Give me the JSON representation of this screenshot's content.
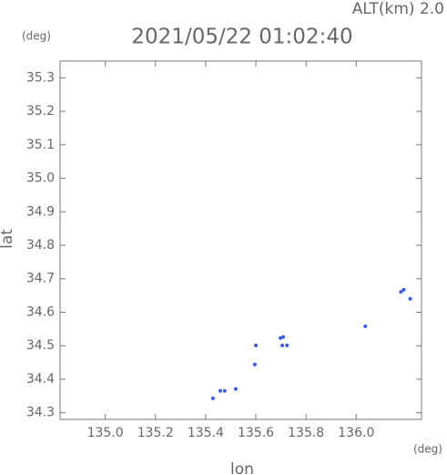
{
  "chart_data": {
    "type": "scatter",
    "title": "2021/05/22 01:02:40",
    "subtitle": "ALT(km) 2.0",
    "x_label": "lon",
    "y_label": "lat",
    "x_unit": "(deg)",
    "y_unit": "(deg)",
    "color": "#3a5ce0",
    "x": [
      135.429,
      135.458,
      135.476,
      135.52,
      135.6,
      135.596,
      135.698,
      135.709,
      135.705,
      135.724,
      136.036,
      136.178,
      136.189,
      136.215
    ],
    "values": [
      34.343,
      34.365,
      34.365,
      34.371,
      34.501,
      34.444,
      34.523,
      34.526,
      34.501,
      34.501,
      34.558,
      34.661,
      34.667,
      34.64
    ],
    "xlim": [
      134.82,
      136.26
    ],
    "ylim": [
      34.28,
      35.35
    ],
    "xticks": [
      {
        "value": 135,
        "label": "135.0"
      },
      135.2,
      135.4,
      135.6,
      135.8,
      {
        "value": 136,
        "label": "136.0"
      }
    ],
    "yticks": [
      34.3,
      34.4,
      34.5,
      34.6,
      34.7,
      34.8,
      34.9,
      {
        "value": 35,
        "label": "35.0"
      },
      35.1,
      35.2,
      35.3
    ]
  }
}
